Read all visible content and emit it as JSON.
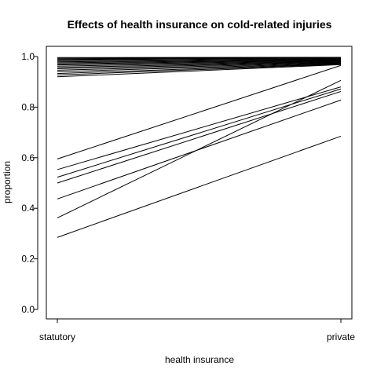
{
  "chart_data": {
    "type": "line",
    "title": "Effects of health insurance on cold-related injuries",
    "xlabel": "health insurance",
    "ylabel": "proportion",
    "categories": [
      "statutory",
      "private"
    ],
    "ylim": [
      0,
      1
    ],
    "yticks": [
      "0.0",
      "0.2",
      "0.4",
      "0.6",
      "0.8",
      "1.0"
    ],
    "ytick_values": [
      0,
      0.2,
      0.4,
      0.6,
      0.8,
      1.0
    ],
    "grid": false,
    "legend": "none",
    "line_color": "#000000",
    "series": [
      {
        "values": [
          0.285,
          0.685
        ]
      },
      {
        "values": [
          0.362,
          0.906
        ]
      },
      {
        "values": [
          0.437,
          0.828
        ]
      },
      {
        "values": [
          0.5,
          0.862
        ]
      },
      {
        "values": [
          0.523,
          0.872
        ]
      },
      {
        "values": [
          0.553,
          0.88
        ]
      },
      {
        "values": [
          0.595,
          0.965
        ]
      },
      {
        "values": [
          0.92,
          0.968
        ]
      },
      {
        "values": [
          0.927,
          0.97
        ]
      },
      {
        "values": [
          0.933,
          0.972
        ]
      },
      {
        "values": [
          0.94,
          0.974
        ]
      },
      {
        "values": [
          0.946,
          0.976
        ]
      },
      {
        "values": [
          0.952,
          0.978
        ]
      },
      {
        "values": [
          0.957,
          0.98
        ]
      },
      {
        "values": [
          0.962,
          0.982
        ]
      },
      {
        "values": [
          0.967,
          0.984
        ]
      },
      {
        "values": [
          0.971,
          0.986
        ]
      },
      {
        "values": [
          0.975,
          0.988
        ]
      },
      {
        "values": [
          0.979,
          0.99
        ]
      },
      {
        "values": [
          0.983,
          0.992
        ]
      },
      {
        "values": [
          0.987,
          0.994
        ]
      },
      {
        "values": [
          0.99,
          0.995
        ]
      },
      {
        "values": [
          0.993,
          0.996
        ]
      },
      {
        "values": [
          0.996,
          0.997
        ]
      }
    ]
  }
}
